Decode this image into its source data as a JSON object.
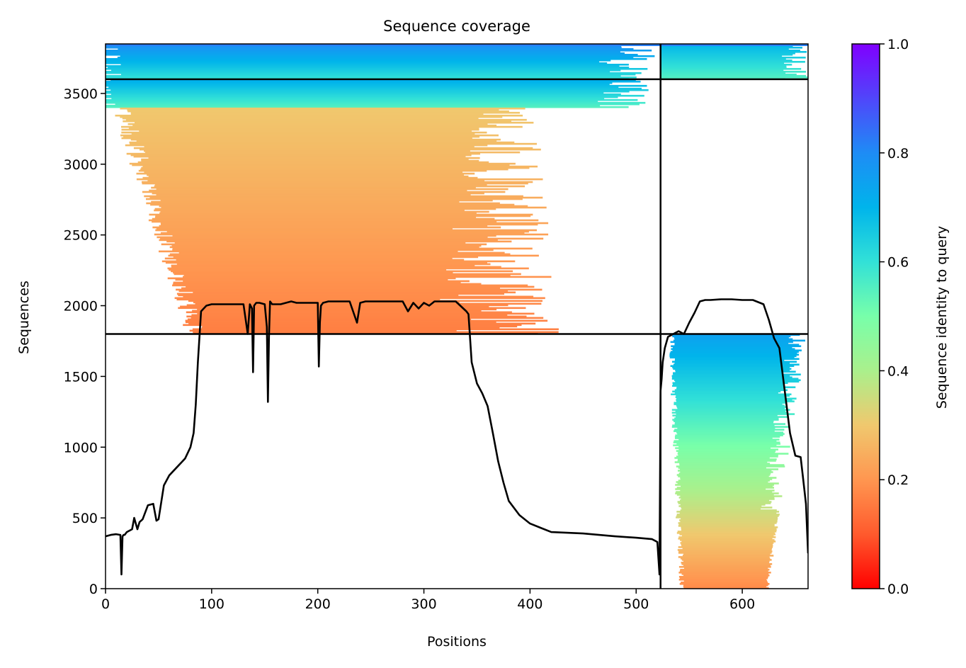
{
  "chart_data": {
    "type": "heatmap",
    "title": "Sequence coverage",
    "xlabel": "Positions",
    "ylabel": "Sequences",
    "xlim": [
      0,
      662
    ],
    "ylim": [
      0,
      3850
    ],
    "x_ticks": [
      0,
      100,
      200,
      300,
      400,
      500,
      600
    ],
    "y_ticks": [
      0,
      500,
      1000,
      1500,
      2000,
      2500,
      3000,
      3500
    ],
    "grid": false,
    "colorbar": {
      "label": "Sequence identity to query",
      "colormap": "rainbow_r",
      "range": [
        0,
        1
      ],
      "ticks": [
        0.0,
        0.2,
        0.4,
        0.6,
        0.8,
        1.0
      ],
      "tick_labels": [
        "0.0",
        "0.2",
        "0.4",
        "0.6",
        "0.8",
        "1.0"
      ]
    },
    "divider_lines": {
      "vertical_x": 523,
      "horizontal_y": [
        1800,
        3600
      ]
    },
    "coverage_blocks": [
      {
        "x_range": [
          0,
          523
        ],
        "y_range": [
          3600,
          3850
        ],
        "identity_range": [
          0.6,
          0.8
        ]
      },
      {
        "x_range": [
          523,
          662
        ],
        "y_range": [
          3600,
          3850
        ],
        "identity_range": [
          0.55,
          0.7
        ]
      },
      {
        "x_range": [
          0,
          523
        ],
        "y_range": [
          3400,
          3600
        ],
        "identity_range": [
          0.55,
          0.72
        ]
      },
      {
        "x_range": [
          0,
          523
        ],
        "y_range": [
          1800,
          3400
        ],
        "identity_range": [
          0.16,
          0.3
        ]
      },
      {
        "x_range": [
          523,
          662
        ],
        "y_range": [
          0,
          1800
        ],
        "identity_range": [
          0.18,
          0.75
        ]
      }
    ],
    "series": [
      {
        "type": "line",
        "color": "#000000",
        "x": [
          0,
          5,
          10,
          14,
          15,
          16,
          17,
          18,
          20,
          25,
          27,
          30,
          32,
          35,
          40,
          45,
          48,
          50,
          55,
          60,
          65,
          70,
          75,
          80,
          83,
          85,
          87,
          90,
          95,
          100,
          110,
          120,
          130,
          134,
          136,
          138,
          139,
          140,
          142,
          145,
          150,
          152,
          153,
          154,
          155,
          157,
          160,
          165,
          170,
          175,
          180,
          190,
          200,
          201,
          202,
          203,
          205,
          210,
          220,
          230,
          237,
          240,
          245,
          250,
          260,
          270,
          280,
          285,
          290,
          295,
          300,
          305,
          310,
          320,
          330,
          340,
          342,
          345,
          350,
          355,
          360,
          365,
          370,
          375,
          380,
          390,
          400,
          420,
          450,
          480,
          500,
          515,
          520,
          522,
          523,
          524,
          525,
          527,
          530,
          535,
          540,
          545,
          550,
          555,
          560,
          565,
          570,
          580,
          590,
          600,
          610,
          620,
          625,
          630,
          635,
          640,
          645,
          650,
          655,
          657,
          660,
          662
        ],
        "y": [
          370,
          380,
          385,
          380,
          100,
          370,
          380,
          380,
          400,
          420,
          500,
          420,
          470,
          490,
          590,
          600,
          480,
          490,
          730,
          800,
          840,
          880,
          920,
          1000,
          1100,
          1300,
          1600,
          1960,
          2000,
          2010,
          2010,
          2010,
          2010,
          1800,
          2010,
          1980,
          1530,
          2000,
          2020,
          2020,
          2010,
          1850,
          1320,
          1780,
          2030,
          2010,
          2010,
          2010,
          2020,
          2030,
          2020,
          2020,
          2020,
          1570,
          1880,
          2000,
          2020,
          2030,
          2030,
          2030,
          1880,
          2020,
          2030,
          2030,
          2030,
          2030,
          2030,
          1960,
          2020,
          1980,
          2020,
          2000,
          2030,
          2030,
          2030,
          1960,
          1940,
          1600,
          1450,
          1380,
          1290,
          1100,
          900,
          750,
          620,
          520,
          460,
          400,
          390,
          370,
          360,
          350,
          330,
          100,
          1400,
          1480,
          1600,
          1700,
          1780,
          1800,
          1820,
          1800,
          1880,
          1950,
          2030,
          2040,
          2040,
          2045,
          2045,
          2040,
          2040,
          2010,
          1900,
          1770,
          1700,
          1400,
          1100,
          940,
          930,
          800,
          600,
          250
        ]
      }
    ]
  }
}
